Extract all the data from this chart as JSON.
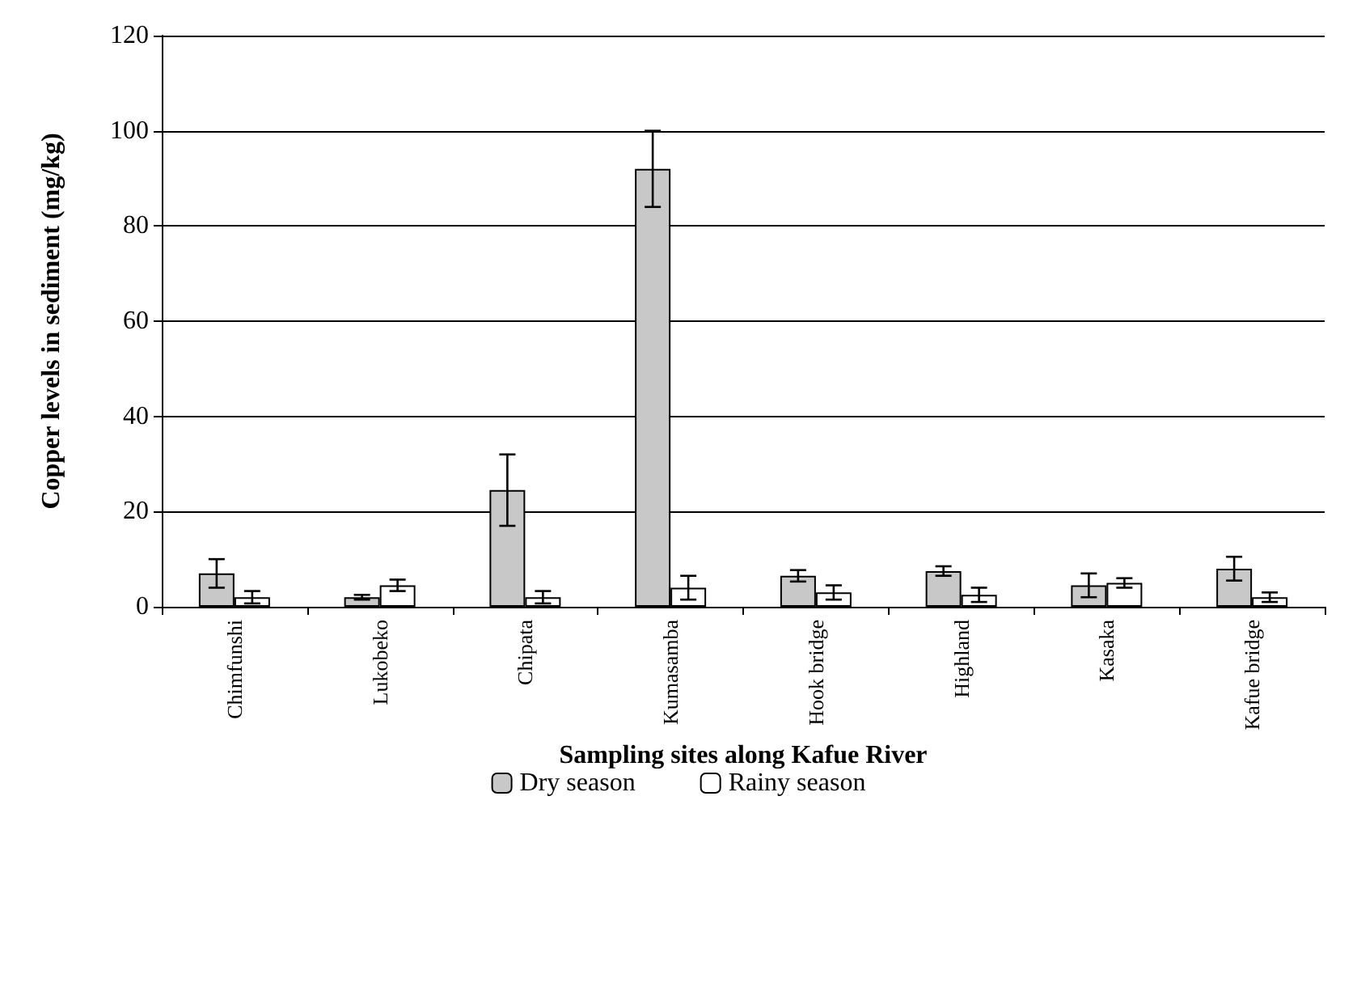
{
  "chart_data": {
    "type": "bar",
    "xlabel": "Sampling sites along Kafue River",
    "ylabel": "Copper levels in sediment (mg/kg)",
    "categories": [
      "Chimfunshi",
      "Lukobeko",
      "Chipata",
      "Kumasamba",
      "Hook bridge",
      "Highland",
      "Kasaka",
      "Kafue bridge"
    ],
    "series": [
      {
        "name": "Dry season",
        "color": "#c8c8c8",
        "values": [
          7,
          2,
          24.5,
          92,
          6.5,
          7.5,
          4.5,
          8
        ],
        "errors": [
          3,
          0.5,
          7.5,
          8,
          1.2,
          1,
          2.5,
          2.5
        ]
      },
      {
        "name": "Rainy season",
        "color": "#ffffff",
        "values": [
          2,
          4.5,
          2,
          4,
          3,
          2.5,
          5,
          2
        ],
        "errors": [
          1.3,
          1.2,
          1.3,
          2.5,
          1.5,
          1.5,
          1,
          1
        ]
      }
    ],
    "ylim": [
      0,
      120
    ],
    "yticks": [
      0,
      20,
      40,
      60,
      80,
      100,
      120
    ],
    "grid": "y",
    "legend": "bottom"
  }
}
